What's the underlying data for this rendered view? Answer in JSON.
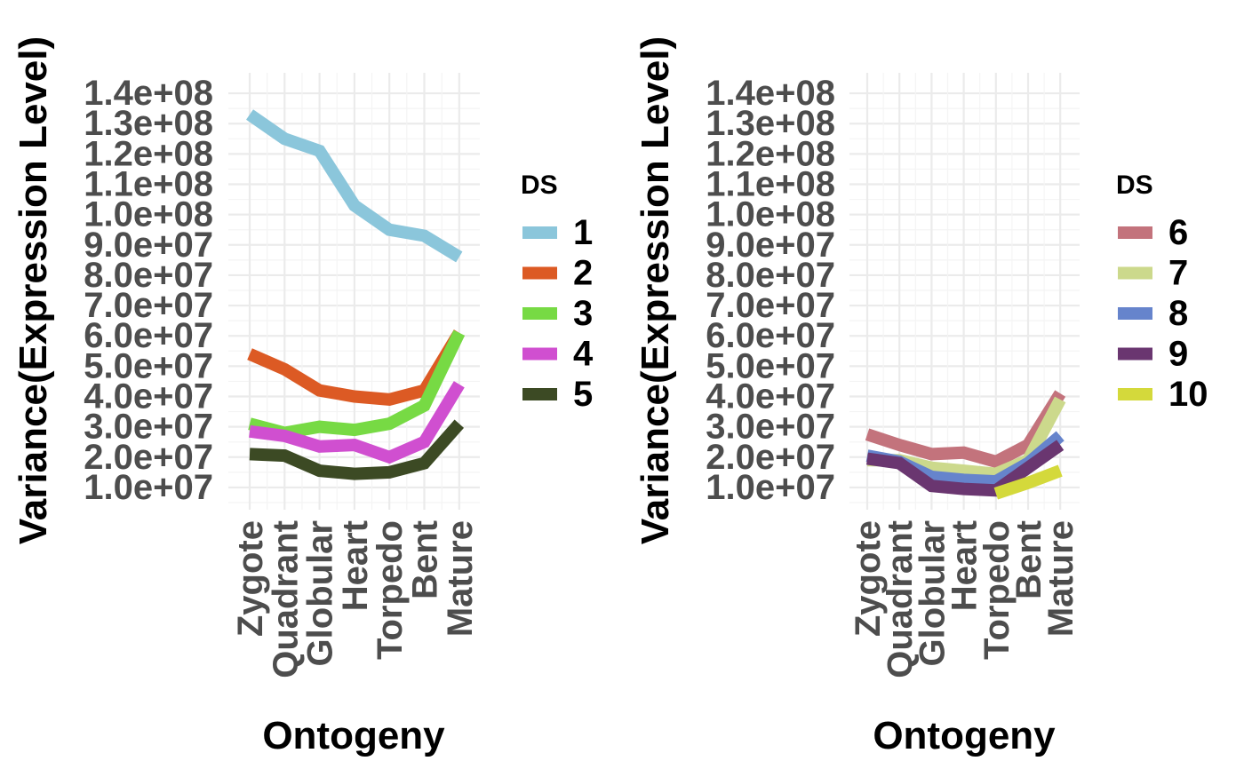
{
  "chart_data": [
    {
      "type": "line",
      "x": [
        "Zygote",
        "Quadrant",
        "Globular",
        "Heart",
        "Torpedo",
        "Bent",
        "Mature"
      ],
      "xlabel": "Ontogeny",
      "ylabel": "Variance(Expression Level)",
      "yticks": [
        "1.0e+07",
        "2.0e+07",
        "3.0e+07",
        "4.0e+07",
        "5.0e+07",
        "6.0e+07",
        "7.0e+07",
        "8.0e+07",
        "9.0e+07",
        "1.0e+08",
        "1.1e+08",
        "1.2e+08",
        "1.3e+08",
        "1.4e+08"
      ],
      "ylim": [
        5000000,
        145000000
      ],
      "grid": true,
      "legend_title": "DS",
      "legend_position": "right",
      "series": [
        {
          "name": "1",
          "color": "#8BC6DB",
          "values": [
            133000000,
            125000000,
            121000000,
            103000000,
            95000000,
            93000000,
            86000000
          ]
        },
        {
          "name": "2",
          "color": "#DC5A24",
          "values": [
            54000000,
            49000000,
            42000000,
            40000000,
            39000000,
            42000000,
            61000000
          ]
        },
        {
          "name": "3",
          "color": "#77DA44",
          "values": [
            31000000,
            28000000,
            30000000,
            29000000,
            31000000,
            37000000,
            61000000
          ]
        },
        {
          "name": "4",
          "color": "#D04FD0",
          "values": [
            28500000,
            27000000,
            23500000,
            24000000,
            20000000,
            25000000,
            44000000
          ]
        },
        {
          "name": "5",
          "color": "#3C4A24",
          "values": [
            21000000,
            20500000,
            15500000,
            14500000,
            15000000,
            18000000,
            31000000
          ]
        }
      ]
    },
    {
      "type": "line",
      "x": [
        "Zygote",
        "Quadrant",
        "Globular",
        "Heart",
        "Torpedo",
        "Bent",
        "Mature"
      ],
      "xlabel": "Ontogeny",
      "ylabel": "Variance(Expression Level)",
      "yticks": [
        "1.0e+07",
        "2.0e+07",
        "3.0e+07",
        "4.0e+07",
        "5.0e+07",
        "6.0e+07",
        "7.0e+07",
        "8.0e+07",
        "9.0e+07",
        "1.0e+08",
        "1.1e+08",
        "1.2e+08",
        "1.3e+08",
        "1.4e+08"
      ],
      "ylim": [
        5000000,
        145000000
      ],
      "grid": true,
      "legend_title": "DS",
      "legend_position": "right",
      "series": [
        {
          "name": "6",
          "color": "#C3737C",
          "values": [
            27500000,
            24000000,
            21000000,
            21500000,
            18500000,
            24000000,
            41000000
          ]
        },
        {
          "name": "7",
          "color": "#CCD98C",
          "values": [
            19000000,
            19000000,
            16500000,
            15500000,
            14500000,
            19000000,
            39000000
          ]
        },
        {
          "name": "8",
          "color": "#6684CC",
          "values": [
            20500000,
            18500000,
            13500000,
            12500000,
            12000000,
            18000000,
            27000000
          ]
        },
        {
          "name": "9",
          "color": "#6A3670",
          "values": [
            19500000,
            18000000,
            10500000,
            9500000,
            9000000,
            16500000,
            24000000
          ]
        },
        {
          "name": "10",
          "color": "#D4D93B",
          "values": [
            null,
            null,
            null,
            null,
            8000000,
            11500000,
            15500000
          ]
        }
      ]
    }
  ]
}
